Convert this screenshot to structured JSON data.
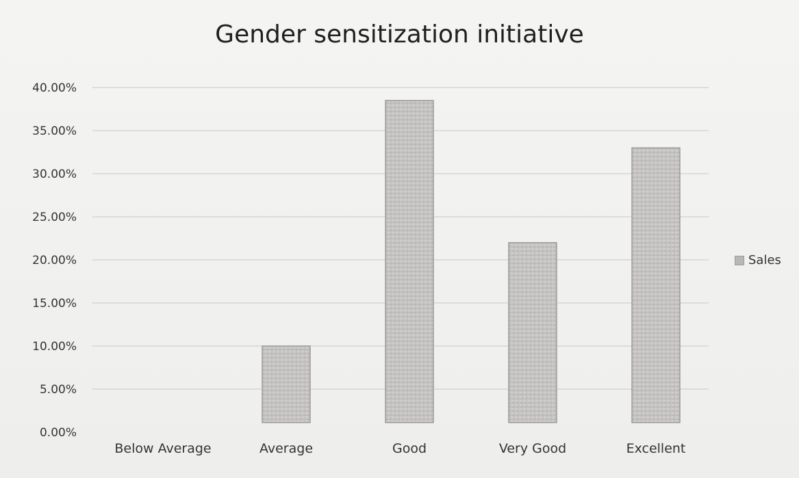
{
  "colors": {
    "bar_fill": "#c3c2c0",
    "bar_edge": "#9d9c9a",
    "grid": "#d6d6d4"
  },
  "chart_data": {
    "type": "bar",
    "title": "Gender sensitization initiative",
    "xlabel": "",
    "ylabel": "",
    "categories": [
      "Below Average",
      "Average",
      "Good",
      "Very Good",
      "Excellent"
    ],
    "series": [
      {
        "name": "Sales",
        "values": [
          0.0,
          10.0,
          38.5,
          22.0,
          33.0
        ]
      }
    ],
    "ylim": [
      0,
      40
    ],
    "y_ticks": [
      "0.00%",
      "5.00%",
      "10.00%",
      "15.00%",
      "20.00%",
      "25.00%",
      "30.00%",
      "35.00%",
      "40.00%"
    ],
    "grid": true,
    "legend_position": "right"
  }
}
